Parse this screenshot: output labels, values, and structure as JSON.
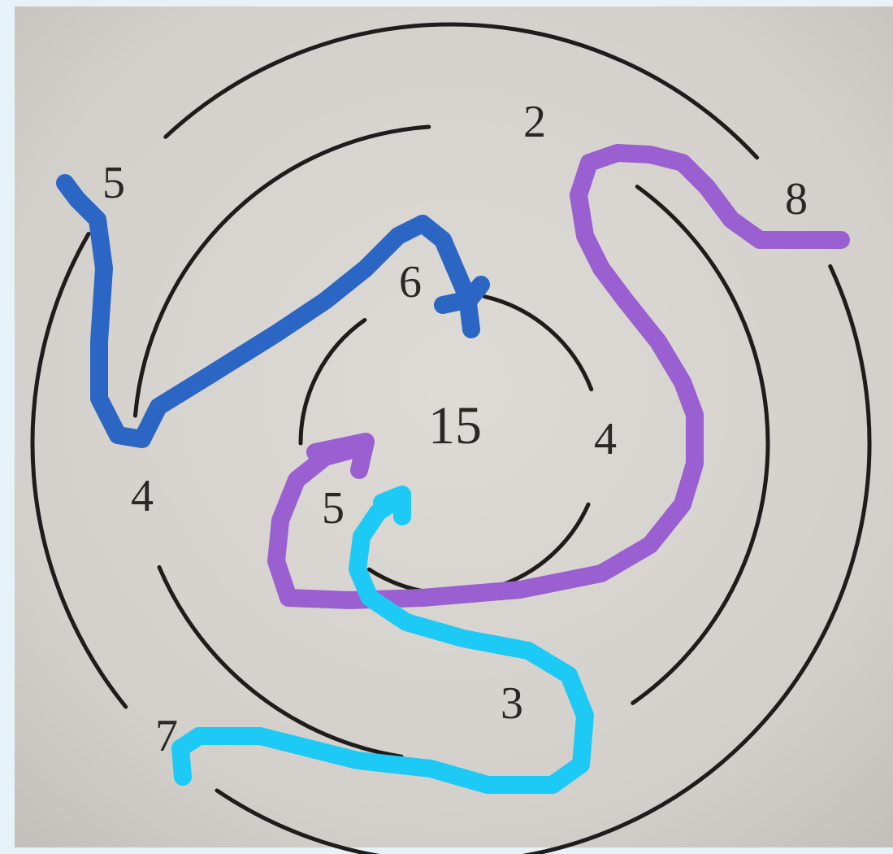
{
  "labels": [
    "2",
    "5",
    "8",
    "6",
    "15",
    "4",
    "4",
    "5",
    "3",
    "7"
  ]
}
